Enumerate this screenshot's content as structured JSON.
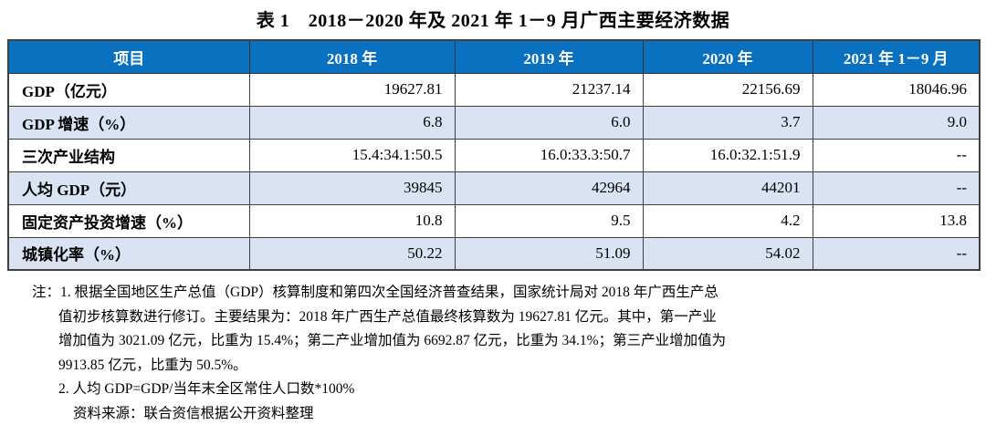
{
  "title": "表 1　2018－2020 年及 2021 年 1－9 月广西主要经济数据",
  "table": {
    "headers": [
      "项目",
      "2018 年",
      "2019 年",
      "2020 年",
      "2021 年 1－9 月"
    ],
    "rows": [
      {
        "label": "GDP（亿元）",
        "values": [
          "19627.81",
          "21237.14",
          "22156.69",
          "18046.96"
        ]
      },
      {
        "label": "GDP 增速（%）",
        "values": [
          "6.8",
          "6.0",
          "3.7",
          "9.0"
        ]
      },
      {
        "label": "三次产业结构",
        "values": [
          "15.4:34.1:50.5",
          "16.0:33.3:50.7",
          "16.0:32.1:51.9",
          "--"
        ]
      },
      {
        "label": "人均 GDP（元）",
        "values": [
          "39845",
          "42964",
          "44201",
          "--"
        ]
      },
      {
        "label": "固定资产投资增速（%）",
        "values": [
          "10.8",
          "9.5",
          "4.2",
          "13.8"
        ]
      },
      {
        "label": "城镇化率（%）",
        "values": [
          "50.22",
          "51.09",
          "54.02",
          "--"
        ]
      }
    ]
  },
  "notes": {
    "line1": "注：1. 根据全国地区生产总值（GDP）核算制度和第四次全国经济普查结果，国家统计局对 2018 年广西生产总",
    "line2": "值初步核算数进行修订。主要结果为：2018 年广西生产总值最终核算数为 19627.81 亿元。其中，第一产业",
    "line3": "增加值为 3021.09 亿元，比重为 15.4%；第二产业增加值为 6692.87 亿元，比重为 34.1%；第三产业增加值为",
    "line4": "9913.85 亿元，比重为 50.5%。",
    "line5": "2. 人均 GDP=GDP/当年末全区常住人口数*100%",
    "line6": "资料来源：联合资信根据公开资料整理"
  },
  "colors": {
    "header_bg": "#0a70c0",
    "header_text": "#ffffff",
    "alt_row_bg": "#dae3f3",
    "border": "#404040"
  }
}
